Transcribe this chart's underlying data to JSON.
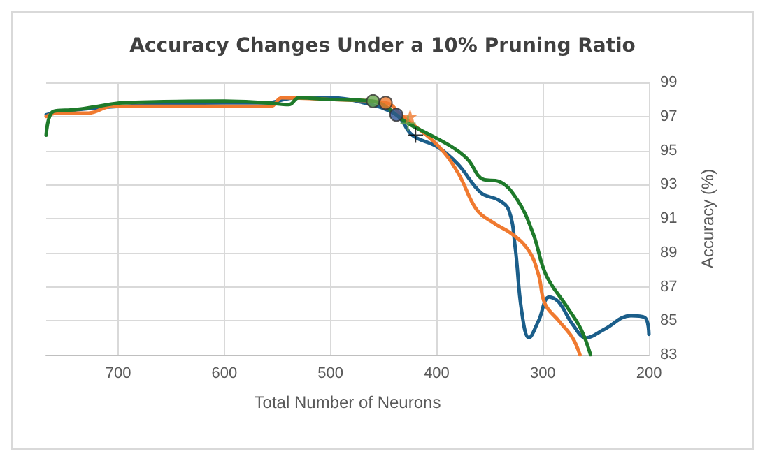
{
  "chart_data": {
    "type": "line",
    "title": "Accuracy Changes Under a 10% Pruning Ratio",
    "xlabel": "Total Number of Neurons",
    "ylabel": "Accuracy (%)",
    "xlim": [
      768,
      200
    ],
    "xticks": [
      700,
      600,
      500,
      400,
      300,
      200
    ],
    "ylim": [
      83,
      99
    ],
    "yticks": [
      83,
      85,
      87,
      89,
      91,
      93,
      95,
      97,
      99
    ],
    "grid": true,
    "marker": "none",
    "line_style": "solid",
    "series": [
      {
        "color": "#1b5e8a",
        "x": [
          768,
          753,
          696,
          600,
          561,
          533,
          500,
          475,
          438,
          423,
          399,
          380,
          358,
          342,
          332,
          326,
          320,
          313,
          304,
          294,
          285,
          272,
          259,
          242,
          217,
          204,
          200
        ],
        "values": [
          97.1,
          97.3,
          97.6,
          97.8,
          97.8,
          98.1,
          98.1,
          97.9,
          97.1,
          95.9,
          95.2,
          94.2,
          92.5,
          92.1,
          91.5,
          89.3,
          85.6,
          84.0,
          85.0,
          86.4,
          86.1,
          84.8,
          84.0,
          84.5,
          85.3,
          85.2,
          84.2
        ]
      },
      {
        "color": "#f07a30",
        "x": [
          768,
          758,
          728,
          706,
          612,
          556,
          546,
          500,
          448,
          432,
          399,
          380,
          362,
          345,
          329,
          313,
          304,
          298,
          285,
          272,
          265
        ],
        "values": [
          97.0,
          97.2,
          97.2,
          97.6,
          97.6,
          97.6,
          98.1,
          98.0,
          97.8,
          97.0,
          95.3,
          93.7,
          91.5,
          90.7,
          90.1,
          89.1,
          87.7,
          86.0,
          85.0,
          84.0,
          83.0
        ]
      },
      {
        "color": "#1e7a2a",
        "x": [
          768,
          761,
          741,
          719,
          696,
          600,
          561,
          539,
          530,
          500,
          461,
          427,
          388,
          371,
          356,
          342,
          324,
          309,
          297,
          277,
          264,
          255
        ],
        "values": [
          95.9,
          97.3,
          97.4,
          97.6,
          97.8,
          97.9,
          97.8,
          97.7,
          98.1,
          98.0,
          97.9,
          96.6,
          95.3,
          94.5,
          93.3,
          93.2,
          92.1,
          90.1,
          87.7,
          85.8,
          84.5,
          83.0
        ]
      },
      {
        "type": "scatter",
        "marker": "circle",
        "color": "#6aa84f",
        "x": [
          460
        ],
        "values": [
          97.9
        ]
      },
      {
        "type": "scatter",
        "marker": "circle",
        "color": "#f07a30",
        "x": [
          448
        ],
        "values": [
          97.8
        ]
      },
      {
        "type": "scatter",
        "marker": "circle",
        "color": "#2f5597",
        "x": [
          438
        ],
        "values": [
          97.1
        ]
      },
      {
        "type": "scatter",
        "marker": "star",
        "color": "#f07a30",
        "x": [
          425
        ],
        "values": [
          97.0
        ]
      },
      {
        "type": "scatter",
        "marker": "cross",
        "color": "#6aa84f",
        "x": [
          427
        ],
        "values": [
          96.6
        ]
      },
      {
        "type": "scatter",
        "marker": "cross",
        "color": "#000000",
        "x": [
          420
        ],
        "values": [
          95.9
        ]
      }
    ]
  }
}
